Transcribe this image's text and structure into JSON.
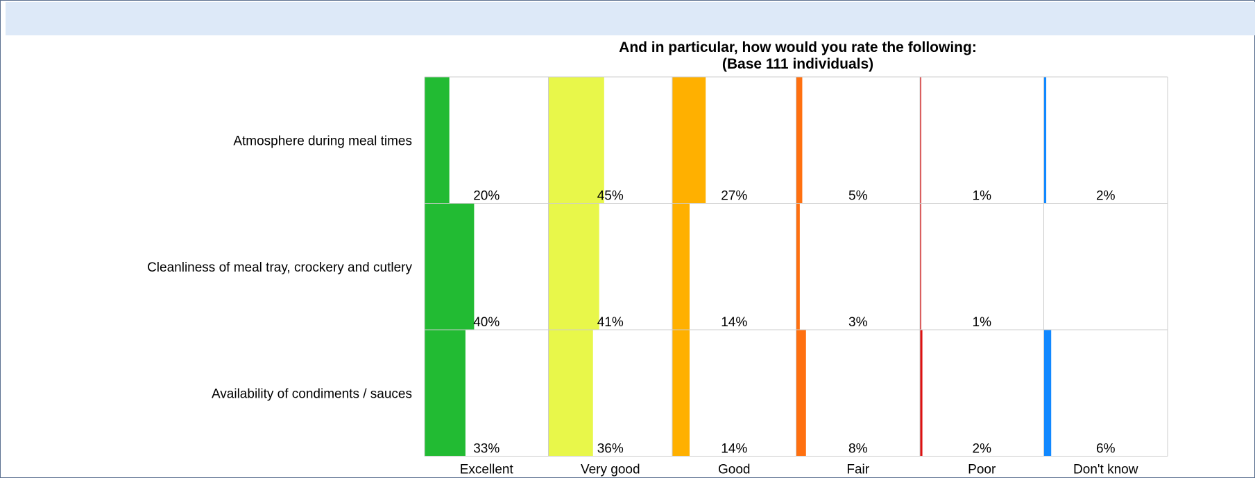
{
  "chart_data": {
    "type": "bar",
    "title": "And in particular, how would you rate the following:",
    "subtitle": "(Base 111 individuals)",
    "categories": [
      "Atmosphere during meal times",
      "Cleanliness of meal tray, crockery and cutlery",
      "Availability of condiments / sauces"
    ],
    "series": [
      {
        "name": "Excellent",
        "color": "#22bb33",
        "values": [
          20,
          40,
          33
        ],
        "labels": [
          "20%",
          "40%",
          "33%"
        ]
      },
      {
        "name": "Very good",
        "color": "#e8f74a",
        "values": [
          45,
          41,
          36
        ],
        "labels": [
          "45%",
          "41%",
          "36%"
        ]
      },
      {
        "name": "Good",
        "color": "#ffb000",
        "values": [
          27,
          14,
          14
        ],
        "labels": [
          "27%",
          "14%",
          "14%"
        ]
      },
      {
        "name": "Fair",
        "color": "#ff7010",
        "values": [
          5,
          3,
          8
        ],
        "labels": [
          "5%",
          "3%",
          "8%"
        ]
      },
      {
        "name": "Poor",
        "color": "#dd1111",
        "values": [
          1,
          1,
          2
        ],
        "labels": [
          "1%",
          "1%",
          "2%"
        ]
      },
      {
        "name": "Don't know",
        "color": "#1188ff",
        "values": [
          2,
          0,
          6
        ],
        "labels": [
          "2%",
          "",
          "6%"
        ]
      }
    ],
    "ylim": [
      0,
      100
    ],
    "grid": true,
    "legend": "bottom"
  },
  "colors": {
    "header_bar": "#dde9f8",
    "frame_border": "#5a6f8f",
    "grid": "#cccccc"
  }
}
